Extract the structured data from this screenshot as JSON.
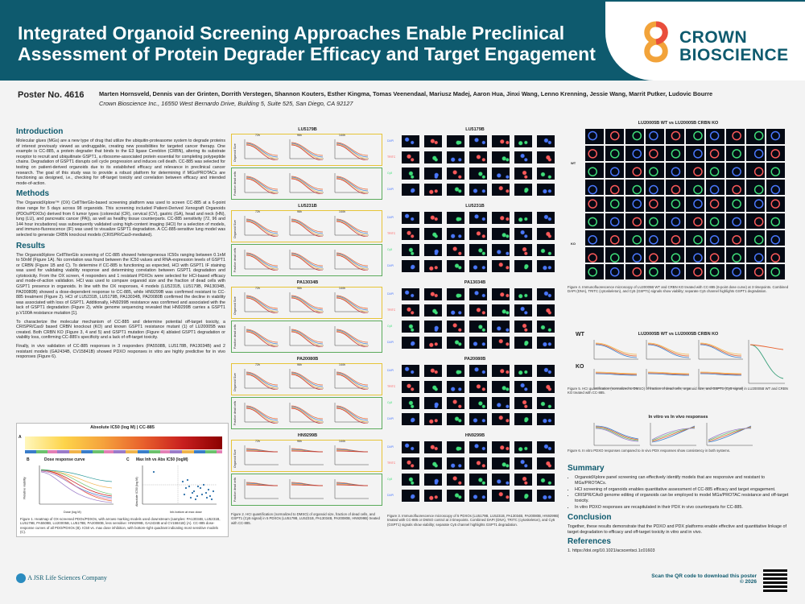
{
  "header": {
    "title": "Integrated Organoid Screening Approaches Enable Preclinical Assessment of Protein Degrader Efficacy and Target Engagement",
    "brand_line1": "CROWN",
    "brand_line2": "BIOSCIENCE"
  },
  "poster_no": "Poster No. 4616",
  "authors": "Marten Hornsveld, Dennis van der Grinten, Dorrith Verstegen, Shannon Kouters, Esther Kingma, Tomas Veenendaal, Mariusz Madej, Aaron Hua, Jinxi Wang, Lenno Krenning, Jessie Wang, Marrit Putker, Ludovic Bourre",
  "affiliation": "Crown Bioscience Inc., 16550 West Bernardo Drive, Building 5, Suite 525, San Diego, CA 92127",
  "intro": {
    "heading": "Introduction",
    "text": "Molecular glues (MGs) are a new type of drug that utilize the ubiquitin-proteasome system to degrade proteins of interest previously viewed as undruggable, creating new possibilities for targeted cancer therapy. One example is CC-885, a protein degrader that binds to the E3 ligase Cereblon (CRBN), altering its substrate receptor to recruit and ubiquitinate GSPT1, a ribosome-associated protein essential for completing polypeptide chains. Degradation of GSPT1 disrupts cell cycle progression and induces cell death. CC-885 was selected for testing on patient-derived organoids due to its established efficacy and relevance in preclinical cancer research. The goal of this study was to provide a robust platform for determining if MGs/PROTACs are functioning as designed, i.e., checking for off-target toxicity and correlation between efficacy and intended mode-of-action."
  },
  "methods": {
    "heading": "Methods",
    "text": "The OrganoidXplore™ (OX) CellTiterGlo-based screening platform was used to screen CC-885 at a 6-point dose range for 5 days across 98 organoids. This screening included Patient-Derived Xenograft Organoids (PDOs/PDXOs) derived from 6 tumor types (colorectal (CR), cervical (CV), gastric (GA), head and neck (HN), lung (LU), and pancreatic cancer (PA)), as well as healthy tissue counterparts. CC-885 sensitivity (72, 96 and 144 hour incubations) was subsequently validated using high-content imaging (HCI) for a selection of models, and immuno-fluorescence (IF) was used to visualize GSPT1 degradation. A CC-885-sensitive lung model was selected to generate CRBN knockout models (CRISPR/Cas9-mediated)."
  },
  "results": {
    "heading": "Results",
    "p1": "The OrganoidXplore CellTiterGlo screening of CC-885 showed heterogeneous IC50s ranging between 0.1nM to 50nM (Figure 1A). No correlation was found between the IC50 values and RNA-expression levels of GSPT1 or CRBN (Figure 1B and C). To determine if CC-885 is functioning as expected, HCI with GSPT1 IF staining was used for validating viability response and determining correlation between GSPT1 degradation and cytotoxicity. From the OX screen, 4 responders and 1 resistant PDXOs were selected for HCI-based efficacy and mode-of-action validation. HCI was used to compare organoid size and the fraction of dead cells with GSPT1 presence in organoids. In line with the OX responses, 4 models (LU5231B, LU5179B, PA13034B, PA20080B) showed a dose-dependent response to CC-885, while HN9299B was confirmed resistant to CC-885 treatment (Figure 2). HCI of LU5231B, LU5179B, PA13034B, PA20080B confirmed the decline in viability was associated with loss of GSPT1. Additionally, HN9299B resistance was confirmed and associated with the lack of GSPT1 degradation (Figure 2), while genome sequencing revealed that HN9299B carries a GSPT1 p.V100A resistance mutation [1].",
    "p2": "To characterize the molecular mechanism of CC-885 and determine potential off-target toxicity, a CRISPR/Cas9 based CRBN knockout (KO) and known GSPT1 resistance mutant (1) of LU20005B was created. Both CRBN KO (Figure 3, 4 and 5) and GSPT1 mutation (Figure 4) ablated GSPT1 degradation or viability loss, confirming CC-885's specificity and a lack of off-target toxicity.",
    "p3": "Finally, in vivo validation of CC-885 responses in 3 responders (PA5508B, LU5178B, PA13034B) and 2 resistant models (GA2434B, CV15841B) showed PDXO responses in vitro are highly predictive for in vivo responses (Figure 6)."
  },
  "fig1": {
    "title": "Absolute IC50 (log M) | CC-885",
    "panel_a": "A",
    "panel_b": "B",
    "panel_b_title": "Dose response curve",
    "panel_c": "C",
    "panel_c_title": "Max Inh vs Abs IC50 (logM)",
    "b_xlabel": "Dose (log M)",
    "b_ylabel": "Relative viability",
    "c_xlabel": "Inh.bottom at max dose",
    "c_ylabel": "Absolute IC50 (log M)",
    "caption": "Figure 1. Heatmap of OX-screened PDOs/PDXOs, with arrows marking models used downstream (samples: PA13034B, LU5231B, LU5179B, PA5508B, LU20005B, LU5178B, PA20080B, less sensitive: HN9299B, GA2434B and CV15841B) (A). CC-885 dose-response curves of all PDO/PDXOs (B). IC50 vs. max dose inhibition, with bottom-right quadrant indicating most sensitive models (C)."
  },
  "fig2": {
    "models": [
      "LU5179B",
      "LU5231B",
      "PA13034B",
      "PA20080B",
      "HN9299B"
    ],
    "timepoints": [
      "72h",
      "96h",
      "144h"
    ],
    "row_labels": [
      "Organoid Size",
      "Fraction dead cells"
    ],
    "caption": "Figure 2. HCI quantification (normalized to DMSO) of organoid size, fraction of dead cells, and GSPT1 (Cy5 signal) in 5 PDXOs (LU5179B, LU5231B, PA13034B, PA20080B, HN9299B) treated with CC-885."
  },
  "fig3": {
    "models": [
      "LU5179B",
      "LU5231B",
      "PA13034B",
      "PA20080B",
      "HN9299B"
    ],
    "channels": [
      "DAPI",
      "TRITC",
      "Cy5"
    ],
    "caption": "Figure 3. Immunofluorescence microscopy of 5 PDXOs (LU5179B, LU5231B, PA13034B, PA20080B, HN9299B) treated with CC-885 or DMSO control at 3 timepoints. Combined DAPI (DNA), TRITC (cytoskeleton), and Cy5 (GSPT1) signals show viability; separate Cy5 channel highlights GSPT1 degradation."
  },
  "fig4": {
    "title": "LU20005B WT vs LU20005B CRBN KO",
    "row_groups": [
      "WT",
      "KO"
    ],
    "caption": "Figure 4. Immunofluorescence microscopy of LU20005B WT and CRBN KO treated with CC-885 (6-point dose curve) at 3 timepoints. Combined DAPI (DNA), TRITC (cytoskeleton), and Cy5 (GSPT1) signals show viability; separate Cy5 channel highlights GSPT1 degradation."
  },
  "fig5": {
    "title": "LU20005B WT vs LU20005B CRBN KO",
    "rows": [
      "WT",
      "KO"
    ],
    "caption": "Figure 5. HCI quantification (normalized to DMSO) of fraction of dead cells, organoid size, and GSPT1 (Cy5 signal) in LU20005B WT and CRBN KO treated with CC-885."
  },
  "fig6": {
    "title": "In vitro vs In vivo responses",
    "caption": "Figure 6. In vitro PDXO responses compared to in vivo PDX responses show consistency in both systems."
  },
  "summary": {
    "heading": "Summary",
    "items": [
      "OrganoidXplore panel screening can effectively identify models that are responsive and resistant to MGs/PROTACs.",
      "HCI screening of organoids enables quantitative assessment of CC-885 efficacy and target engagement.",
      "CRISPR/CAs9 genome editing of organoids can be employed to model MGs/PROTAC resistance and off-target toxicity.",
      "In vitro PDXO responses are recapitulated in their PDX in vivo counterparts for CC-885."
    ]
  },
  "conclusion": {
    "heading": "Conclusion",
    "text": "Together, these results demonstrate that the PDXO and PDX platforms enable effective and quantitative linkage of target degradation to efficacy and off-target toxicity in vitro and in vivo."
  },
  "references": {
    "heading": "References",
    "text": "1. https://doi.org/10.1021/acscentsci.1c01603"
  },
  "footer": {
    "company": "A JSR Life Sciences Company",
    "qr_text": "Scan the QR code to download this poster",
    "copyright": "© 2026"
  },
  "colors": {
    "brand": "#0e5a6e",
    "panel_yellow": "#e6c437",
    "panel_green": "#5bab5b"
  }
}
